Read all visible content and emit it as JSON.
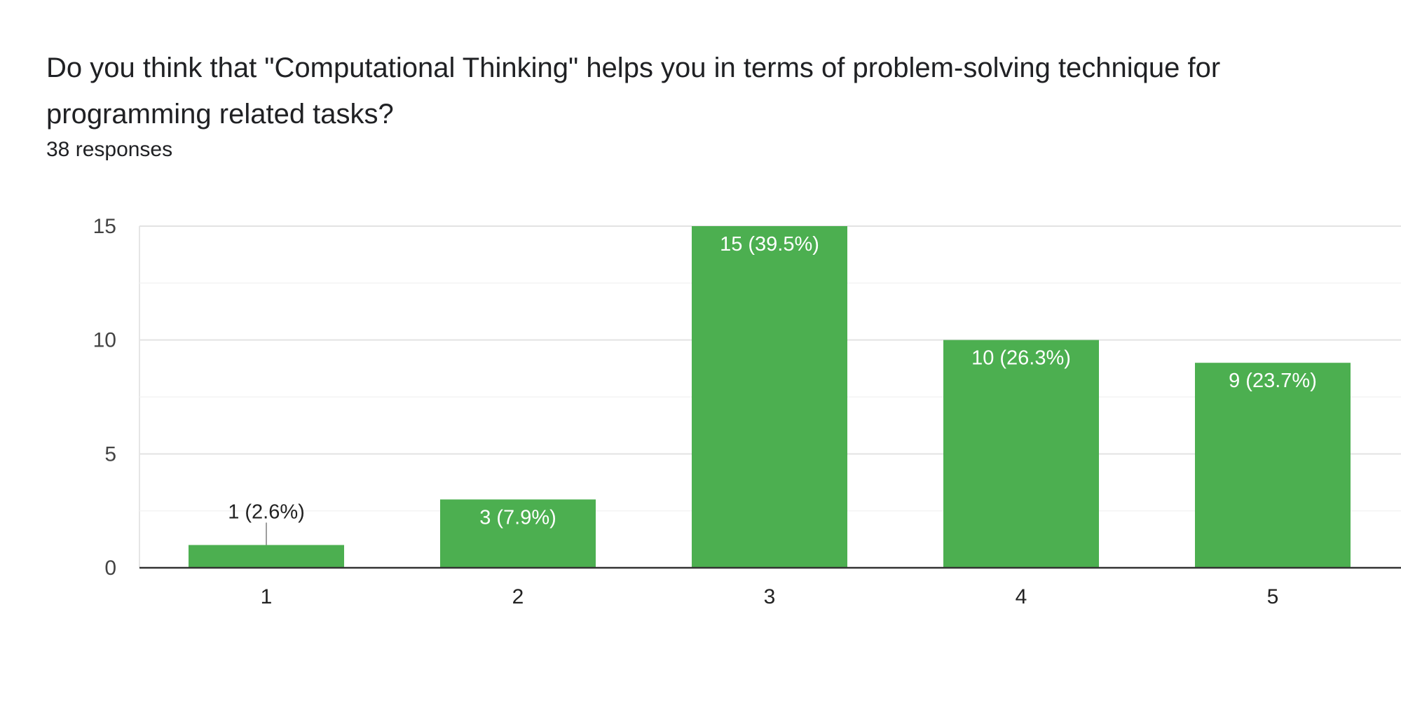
{
  "header": {
    "question": "Do you think that \"Computational Thinking\" helps you in terms of problem-solving technique for programming related tasks?",
    "responses": "38 responses"
  },
  "chart_data": {
    "type": "bar",
    "categories": [
      "1",
      "2",
      "3",
      "4",
      "5"
    ],
    "values": [
      1,
      3,
      15,
      10,
      9
    ],
    "data_labels": [
      "1 (2.6%)",
      "3 (7.9%)",
      "15 (39.5%)",
      "10 (26.3%)",
      "9 (23.7%)"
    ],
    "ylim": [
      0,
      15
    ],
    "y_ticks": [
      0,
      5,
      10,
      15
    ],
    "gridlines": true,
    "legend": "none",
    "bar_color": "#4caf50",
    "xlabel": "",
    "ylabel": ""
  }
}
